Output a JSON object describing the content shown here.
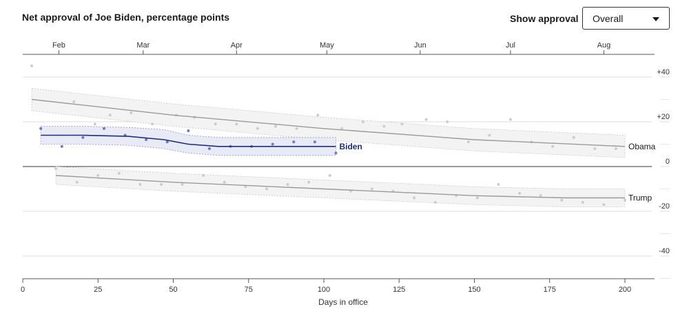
{
  "header": {
    "title": "Net approval of Joe Biden, percentage points",
    "control_label": "Show approval",
    "select_value": "Overall"
  },
  "colors": {
    "biden": "#1f2d7a",
    "biden_band": "#e8eaf5",
    "reference": "#9a9a9a",
    "reference_band": "#f3f3f3",
    "points_gray": "#cccccc",
    "points_biden": "#6f78c0"
  },
  "chart_data": {
    "type": "line",
    "title": "Net approval of Joe Biden, percentage points",
    "xlabel": "Days in office",
    "ylabel": "",
    "xlim": [
      0,
      210
    ],
    "ylim": [
      -50,
      50
    ],
    "x_ticks": [
      0,
      25,
      50,
      75,
      100,
      125,
      150,
      175,
      200
    ],
    "y_ticks": [
      40,
      20,
      0,
      -20,
      -40
    ],
    "y_tick_labels": [
      "+40",
      "+20",
      "0",
      "-20",
      "-40"
    ],
    "month_ticks": [
      {
        "label": "Feb",
        "day": 12
      },
      {
        "label": "Mar",
        "day": 40
      },
      {
        "label": "Apr",
        "day": 71
      },
      {
        "label": "May",
        "day": 101
      },
      {
        "label": "Jun",
        "day": 132
      },
      {
        "label": "Jul",
        "day": 162
      },
      {
        "label": "Aug",
        "day": 193
      }
    ],
    "grid": true,
    "series": [
      {
        "name": "Obama",
        "style": "reference",
        "line": [
          [
            3,
            30
          ],
          [
            50,
            23
          ],
          [
            100,
            17
          ],
          [
            150,
            12
          ],
          [
            200,
            9
          ]
        ],
        "band_upper": [
          [
            3,
            35
          ],
          [
            50,
            28
          ],
          [
            100,
            22
          ],
          [
            150,
            17
          ],
          [
            200,
            14
          ]
        ],
        "band_lower": [
          [
            3,
            25
          ],
          [
            50,
            18
          ],
          [
            100,
            12
          ],
          [
            150,
            7
          ],
          [
            200,
            4
          ]
        ],
        "points": [
          [
            3,
            45
          ],
          [
            17,
            29
          ],
          [
            24,
            19
          ],
          [
            29,
            23
          ],
          [
            36,
            24
          ],
          [
            43,
            19
          ],
          [
            51,
            23
          ],
          [
            57,
            22
          ],
          [
            64,
            19
          ],
          [
            71,
            19
          ],
          [
            78,
            17
          ],
          [
            84,
            18
          ],
          [
            91,
            17
          ],
          [
            98,
            23
          ],
          [
            106,
            17
          ],
          [
            113,
            20
          ],
          [
            120,
            18
          ],
          [
            126,
            19
          ],
          [
            134,
            21
          ],
          [
            141,
            20
          ],
          [
            148,
            11
          ],
          [
            155,
            14
          ],
          [
            162,
            21
          ],
          [
            169,
            11
          ],
          [
            176,
            9
          ],
          [
            183,
            13
          ],
          [
            190,
            8
          ],
          [
            197,
            8
          ]
        ]
      },
      {
        "name": "Trump",
        "style": "reference",
        "line": [
          [
            11,
            -4
          ],
          [
            50,
            -7
          ],
          [
            100,
            -10
          ],
          [
            150,
            -13
          ],
          [
            180,
            -14
          ],
          [
            200,
            -14
          ]
        ],
        "band_upper": [
          [
            11,
            0
          ],
          [
            50,
            -3
          ],
          [
            100,
            -6
          ],
          [
            150,
            -9
          ],
          [
            180,
            -10
          ],
          [
            200,
            -10
          ]
        ],
        "band_lower": [
          [
            11,
            -8
          ],
          [
            50,
            -11
          ],
          [
            100,
            -14
          ],
          [
            150,
            -17
          ],
          [
            180,
            -18
          ],
          [
            200,
            -18
          ]
        ],
        "points": [
          [
            11,
            -1
          ],
          [
            18,
            -7
          ],
          [
            25,
            -4
          ],
          [
            32,
            -3
          ],
          [
            39,
            -8
          ],
          [
            46,
            -8
          ],
          [
            53,
            -8
          ],
          [
            60,
            -4
          ],
          [
            67,
            -7
          ],
          [
            74,
            -9
          ],
          [
            81,
            -10
          ],
          [
            88,
            -8
          ],
          [
            95,
            -7
          ],
          [
            102,
            -4
          ],
          [
            109,
            -11
          ],
          [
            116,
            -10
          ],
          [
            123,
            -11
          ],
          [
            130,
            -14
          ],
          [
            137,
            -16
          ],
          [
            144,
            -13
          ],
          [
            151,
            -14
          ],
          [
            158,
            -8
          ],
          [
            165,
            -12
          ],
          [
            172,
            -13
          ],
          [
            179,
            -15
          ],
          [
            186,
            -16
          ],
          [
            193,
            -17
          ],
          [
            200,
            -15
          ]
        ]
      },
      {
        "name": "Biden",
        "style": "highlight",
        "line": [
          [
            6,
            14
          ],
          [
            20,
            14
          ],
          [
            35,
            13.5
          ],
          [
            47,
            12
          ],
          [
            55,
            10
          ],
          [
            65,
            9
          ],
          [
            80,
            9
          ],
          [
            95,
            9
          ],
          [
            104,
            9
          ]
        ],
        "band_upper": [
          [
            6,
            18
          ],
          [
            20,
            18
          ],
          [
            35,
            17.5
          ],
          [
            47,
            16.5
          ],
          [
            55,
            14
          ],
          [
            65,
            13
          ],
          [
            80,
            13
          ],
          [
            95,
            13
          ],
          [
            104,
            13
          ]
        ],
        "band_lower": [
          [
            6,
            10
          ],
          [
            20,
            10
          ],
          [
            35,
            9.5
          ],
          [
            47,
            8
          ],
          [
            55,
            6
          ],
          [
            65,
            5
          ],
          [
            80,
            5
          ],
          [
            95,
            5
          ],
          [
            104,
            5
          ]
        ],
        "points": [
          [
            6,
            17
          ],
          [
            13,
            9
          ],
          [
            20,
            13
          ],
          [
            27,
            17
          ],
          [
            34,
            14
          ],
          [
            41,
            12
          ],
          [
            48,
            11
          ],
          [
            55,
            16
          ],
          [
            62,
            8
          ],
          [
            69,
            9
          ],
          [
            76,
            9
          ],
          [
            83,
            10
          ],
          [
            90,
            11
          ],
          [
            97,
            11
          ],
          [
            104,
            6
          ]
        ]
      }
    ]
  }
}
